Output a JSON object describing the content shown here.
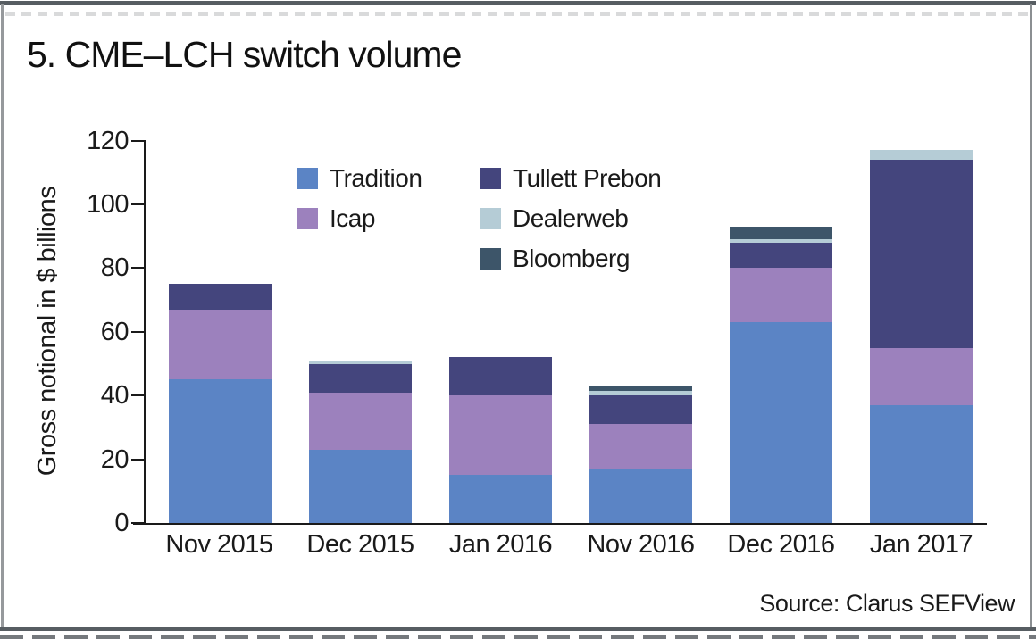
{
  "title": "5. CME–LCH switch volume",
  "source": "Source: Clarus SEFView",
  "frame_colors": {
    "border_dark": "#575d62",
    "border_side": "#96999c",
    "axis": "#1a1a1a"
  },
  "chart_data": {
    "type": "bar",
    "stacked": true,
    "title": "5. CME–LCH switch volume",
    "ylabel": "Gross notional in $ billions",
    "xlabel": "",
    "ylim": [
      0,
      120
    ],
    "yticks": [
      0,
      20,
      40,
      60,
      80,
      100,
      120
    ],
    "grid": false,
    "legend_position": "inside-upper-left, two columns",
    "categories": [
      "Nov 2015",
      "Dec 2015",
      "Jan 2016",
      "Nov 2016",
      "Dec 2016",
      "Jan 2017"
    ],
    "series": [
      {
        "name": "Tradition",
        "color": "#5b84c5",
        "values": [
          45,
          23,
          15,
          17,
          63,
          37
        ]
      },
      {
        "name": "Icap",
        "color": "#9c81bd",
        "values": [
          22,
          18,
          25,
          14,
          17,
          18
        ]
      },
      {
        "name": "Tullett Prebon",
        "color": "#44457d",
        "values": [
          8,
          9,
          12,
          9,
          8,
          59
        ]
      },
      {
        "name": "Dealerweb",
        "color": "#b5ccd6",
        "values": [
          0,
          1,
          0,
          1.5,
          1,
          3
        ]
      },
      {
        "name": "Bloomberg",
        "color": "#3d5569",
        "values": [
          0,
          0,
          0,
          1.5,
          4,
          0
        ]
      }
    ],
    "totals": [
      75,
      51,
      52,
      43,
      93,
      117
    ],
    "legend_columns": [
      [
        0,
        1
      ],
      [
        2,
        3,
        4
      ]
    ]
  }
}
